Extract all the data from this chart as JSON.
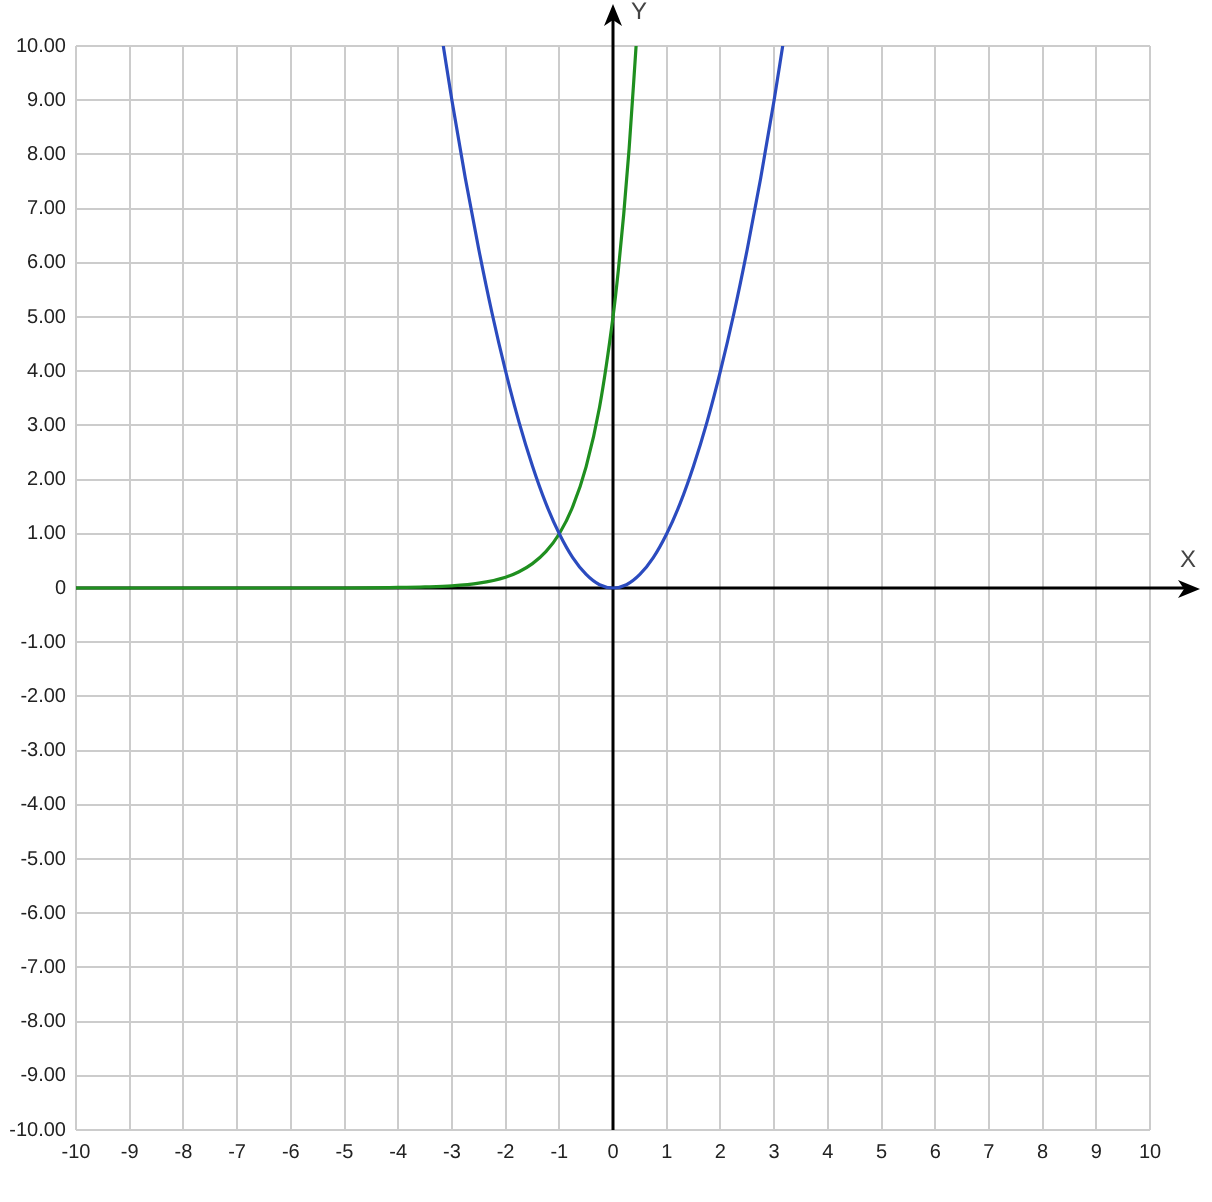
{
  "chart_data": {
    "type": "line",
    "xlabel": "X",
    "ylabel": "Y",
    "xlim": [
      -10,
      10
    ],
    "ylim": [
      -10,
      10
    ],
    "xticks": [
      -10,
      -9,
      -8,
      -7,
      -6,
      -5,
      -4,
      -3,
      -2,
      -1,
      0,
      1,
      2,
      3,
      4,
      5,
      6,
      7,
      8,
      9,
      10
    ],
    "yticks": [
      {
        "value": 10,
        "label": "10.00"
      },
      {
        "value": 9,
        "label": "9.00"
      },
      {
        "value": 8,
        "label": "8.00"
      },
      {
        "value": 7,
        "label": "7.00"
      },
      {
        "value": 6,
        "label": "6.00"
      },
      {
        "value": 5,
        "label": "5.00"
      },
      {
        "value": 4,
        "label": "4.00"
      },
      {
        "value": 3,
        "label": "3.00"
      },
      {
        "value": 2,
        "label": "2.00"
      },
      {
        "value": 1,
        "label": "1.00"
      },
      0,
      {
        "value": -1,
        "label": "-1.00"
      },
      {
        "value": -2,
        "label": "-2.00"
      },
      {
        "value": -3,
        "label": "-3.00"
      },
      {
        "value": -4,
        "label": "-4.00"
      },
      {
        "value": -5,
        "label": "-5.00"
      },
      {
        "value": -6,
        "label": "-6.00"
      },
      {
        "value": -7,
        "label": "-7.00"
      },
      {
        "value": -8,
        "label": "-8.00"
      },
      {
        "value": -9,
        "label": "-9.00"
      },
      {
        "value": -10,
        "label": "-10.00"
      }
    ],
    "grid": true,
    "marker": "none",
    "line_style": "solid",
    "series": [
      {
        "color": "#2b4bbf",
        "x": [
          -3.16,
          -3,
          -2.75,
          -2.5,
          -2.25,
          -2,
          -1.75,
          -1.5,
          -1.25,
          -1,
          -0.75,
          -0.5,
          -0.25,
          0,
          0.25,
          0.5,
          0.75,
          1,
          1.25,
          1.5,
          1.75,
          2,
          2.25,
          2.5,
          2.75,
          3,
          3.16
        ],
        "values": [
          10,
          9,
          7.56,
          6.25,
          5.06,
          4,
          3.06,
          2.25,
          1.56,
          1,
          0.56,
          0.25,
          0.06,
          0,
          0.06,
          0.25,
          0.56,
          1,
          1.56,
          2.25,
          3.06,
          4,
          5.06,
          6.25,
          7.56,
          9,
          10
        ]
      },
      {
        "color": "#1f8f1f",
        "x": [
          -10,
          -8,
          -6,
          -5,
          -4,
          -3.5,
          -3,
          -2.5,
          -2,
          -1.75,
          -1.5,
          -1.25,
          -1,
          -0.75,
          -0.5,
          -0.25,
          0,
          0.1,
          0.2,
          0.3,
          0.43
        ],
        "values": [
          0,
          0,
          0,
          0,
          0.01,
          0.02,
          0.04,
          0.09,
          0.2,
          0.3,
          0.45,
          0.67,
          1,
          1.5,
          2.24,
          3.34,
          5,
          5.87,
          6.9,
          8.1,
          10
        ]
      }
    ]
  }
}
